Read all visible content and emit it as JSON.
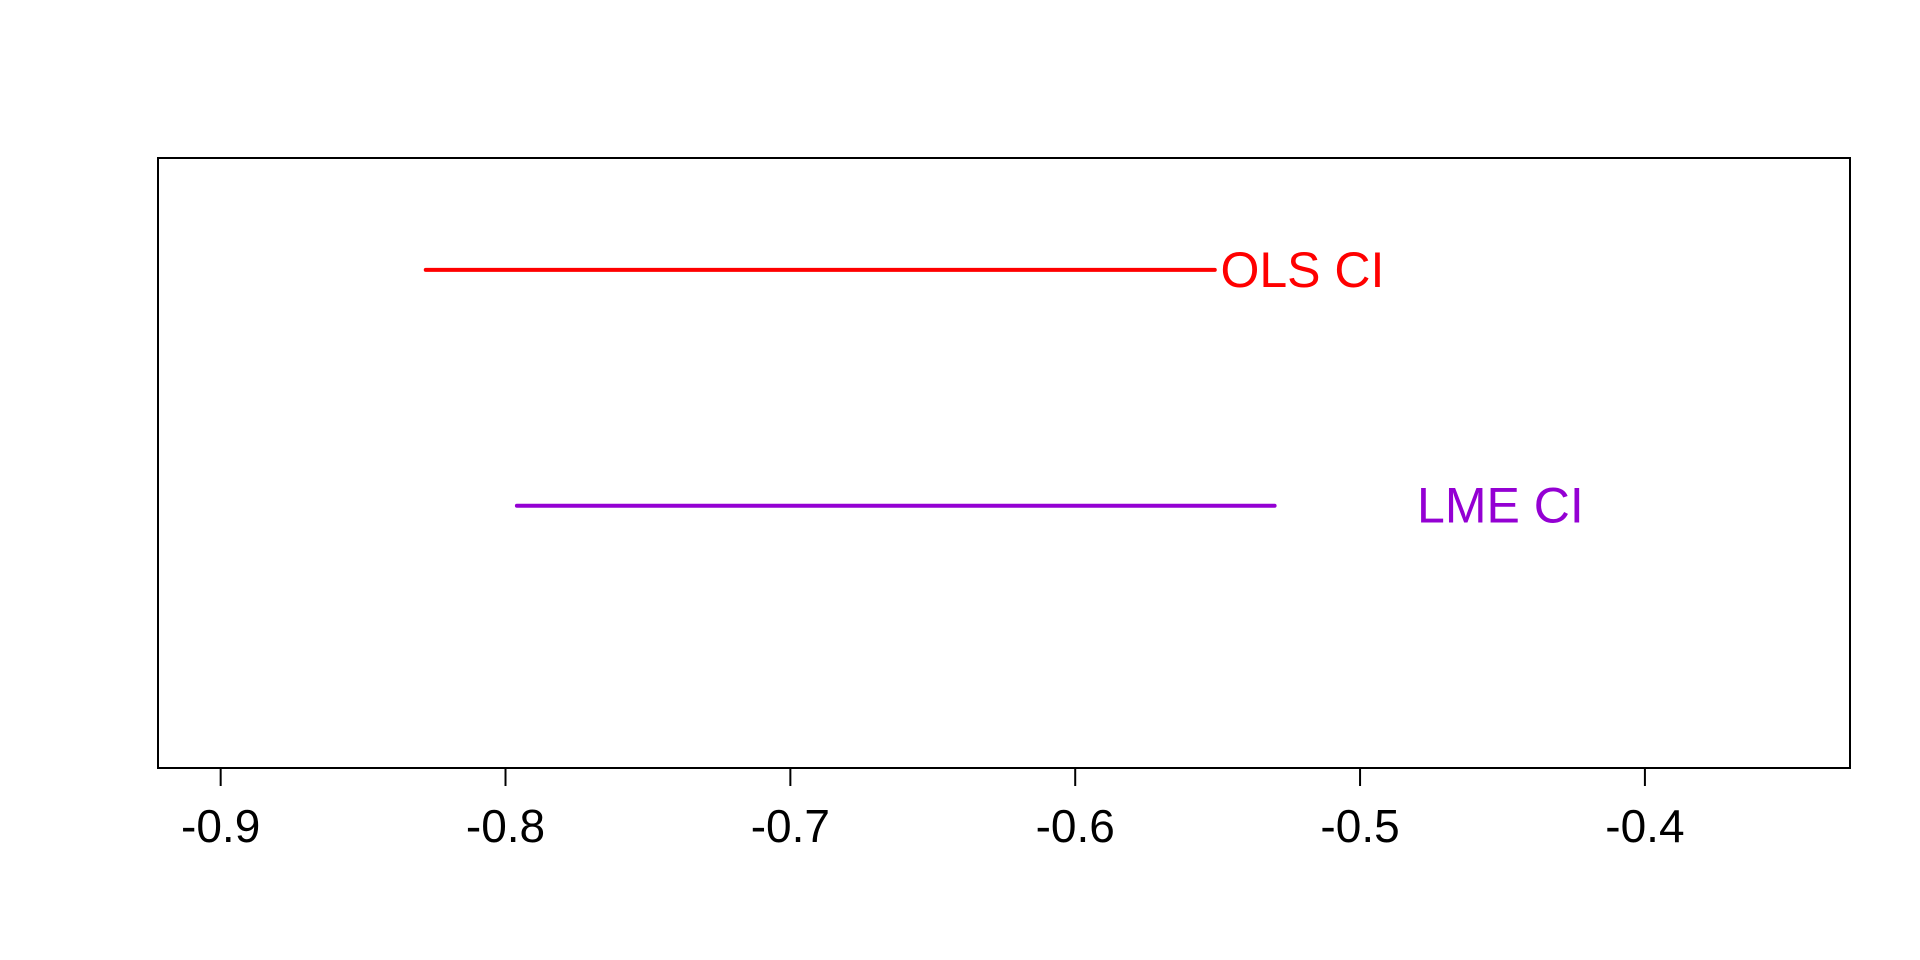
{
  "chart_data": {
    "type": "interval",
    "title": "",
    "xlabel": "",
    "ylabel": "",
    "xlim": [
      -0.922,
      -0.328
    ],
    "ylim": [
      0,
      3
    ],
    "grid": false,
    "legend": "none",
    "x_ticks": [
      -0.9,
      -0.8,
      -0.7,
      -0.6,
      -0.5,
      -0.4
    ],
    "x_tick_labels": [
      "-0.9",
      "-0.8",
      "-0.7",
      "-0.6",
      "-0.5",
      "-0.4"
    ],
    "series": [
      {
        "label": "OLS CI",
        "lower": -0.828,
        "upper": -0.551,
        "y": 2.45,
        "label_x": -0.549,
        "color": "#ff0000"
      },
      {
        "label": "LME CI",
        "lower": -0.796,
        "upper": -0.53,
        "y": 1.29,
        "label_x": -0.48,
        "color": "#9400d3"
      }
    ]
  }
}
